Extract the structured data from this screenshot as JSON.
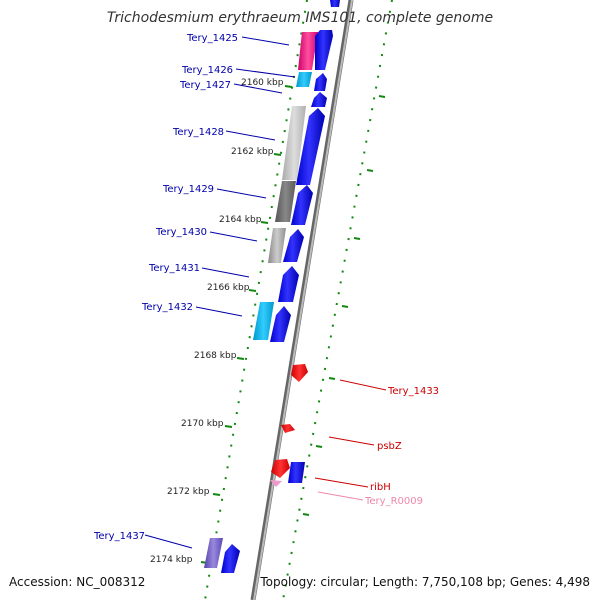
{
  "title": "Trichodesmium erythraeum IMS101, complete genome",
  "accession": "Accession: NC_008312",
  "summary": "Topology: circular; Length: 7,750,108 bp; Genes: 4,498",
  "colors": {
    "label_left": "#0000aa",
    "label_red": "#cc0000",
    "label_pink": "#ee88aa",
    "tick": "#118811",
    "backbone": "#888888"
  },
  "scale_labels": [
    "2160 kbp",
    "2162 kbp",
    "2164 kbp",
    "2166 kbp",
    "2168 kbp",
    "2170 kbp",
    "2172 kbp",
    "2174 kbp"
  ],
  "features": [
    {
      "name": "Tery_1425",
      "side": "left",
      "color": "#0000aa"
    },
    {
      "name": "Tery_1426",
      "side": "left",
      "color": "#0000aa"
    },
    {
      "name": "Tery_1427",
      "side": "left",
      "color": "#0000aa"
    },
    {
      "name": "Tery_1428",
      "side": "left",
      "color": "#0000aa"
    },
    {
      "name": "Tery_1429",
      "side": "left",
      "color": "#0000aa"
    },
    {
      "name": "Tery_1430",
      "side": "left",
      "color": "#0000aa"
    },
    {
      "name": "Tery_1431",
      "side": "left",
      "color": "#0000aa"
    },
    {
      "name": "Tery_1432",
      "side": "left",
      "color": "#0000aa"
    },
    {
      "name": "Tery_1433",
      "side": "right",
      "color": "#cc0000"
    },
    {
      "name": "psbZ",
      "side": "right",
      "color": "#cc0000"
    },
    {
      "name": "ribH",
      "side": "right",
      "color": "#cc0000"
    },
    {
      "name": "Tery_R0009",
      "side": "right",
      "color": "#ee88aa"
    },
    {
      "name": "Tery_1437",
      "side": "left",
      "color": "#0000aa"
    }
  ]
}
